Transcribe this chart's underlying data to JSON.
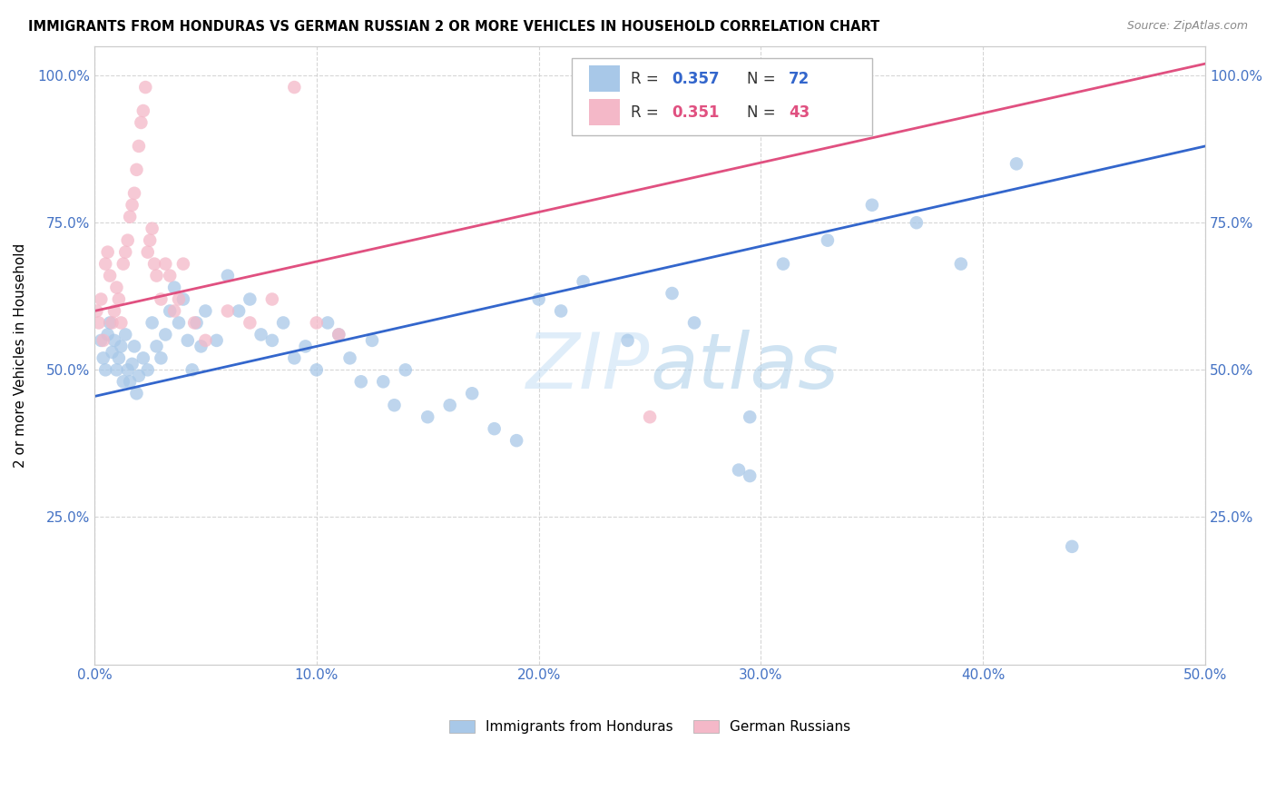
{
  "title": "IMMIGRANTS FROM HONDURAS VS GERMAN RUSSIAN 2 OR MORE VEHICLES IN HOUSEHOLD CORRELATION CHART",
  "source": "Source: ZipAtlas.com",
  "ylabel": "2 or more Vehicles in Household",
  "x_min": 0.0,
  "x_max": 0.5,
  "y_min": 0.0,
  "y_max": 1.05,
  "x_tick_labels": [
    "0.0%",
    "10.0%",
    "20.0%",
    "30.0%",
    "40.0%",
    "50.0%"
  ],
  "x_tick_vals": [
    0.0,
    0.1,
    0.2,
    0.3,
    0.4,
    0.5
  ],
  "y_tick_labels": [
    "25.0%",
    "50.0%",
    "75.0%",
    "100.0%"
  ],
  "y_tick_vals": [
    0.25,
    0.5,
    0.75,
    1.0
  ],
  "legend_label1": "Immigrants from Honduras",
  "legend_label2": "German Russians",
  "blue_color": "#a8c8e8",
  "pink_color": "#f4b8c8",
  "blue_line_color": "#3366cc",
  "pink_line_color": "#e05080",
  "r_n_blue_color": "#3366cc",
  "r_n_pink_color": "#e05080",
  "watermark_color": "#d0e8f8",
  "blue_line_x": [
    0.0,
    0.5
  ],
  "blue_line_y": [
    0.455,
    0.88
  ],
  "pink_line_x": [
    0.0,
    0.5
  ],
  "pink_line_y": [
    0.6,
    1.02
  ],
  "blue_x": [
    0.003,
    0.004,
    0.005,
    0.006,
    0.007,
    0.008,
    0.009,
    0.01,
    0.011,
    0.012,
    0.013,
    0.014,
    0.015,
    0.016,
    0.017,
    0.018,
    0.019,
    0.02,
    0.022,
    0.024,
    0.026,
    0.028,
    0.03,
    0.032,
    0.034,
    0.036,
    0.038,
    0.04,
    0.042,
    0.044,
    0.046,
    0.048,
    0.05,
    0.055,
    0.06,
    0.065,
    0.07,
    0.075,
    0.08,
    0.085,
    0.09,
    0.095,
    0.1,
    0.105,
    0.11,
    0.115,
    0.12,
    0.125,
    0.13,
    0.135,
    0.14,
    0.15,
    0.16,
    0.17,
    0.18,
    0.19,
    0.2,
    0.21,
    0.22,
    0.24,
    0.26,
    0.27,
    0.29,
    0.295,
    0.31,
    0.33,
    0.35,
    0.37,
    0.39,
    0.415,
    0.44,
    0.295
  ],
  "blue_y": [
    0.55,
    0.52,
    0.5,
    0.56,
    0.58,
    0.53,
    0.55,
    0.5,
    0.52,
    0.54,
    0.48,
    0.56,
    0.5,
    0.48,
    0.51,
    0.54,
    0.46,
    0.49,
    0.52,
    0.5,
    0.58,
    0.54,
    0.52,
    0.56,
    0.6,
    0.64,
    0.58,
    0.62,
    0.55,
    0.5,
    0.58,
    0.54,
    0.6,
    0.55,
    0.66,
    0.6,
    0.62,
    0.56,
    0.55,
    0.58,
    0.52,
    0.54,
    0.5,
    0.58,
    0.56,
    0.52,
    0.48,
    0.55,
    0.48,
    0.44,
    0.5,
    0.42,
    0.44,
    0.46,
    0.4,
    0.38,
    0.62,
    0.6,
    0.65,
    0.55,
    0.63,
    0.58,
    0.33,
    0.32,
    0.68,
    0.72,
    0.78,
    0.75,
    0.68,
    0.85,
    0.2,
    0.42
  ],
  "pink_x": [
    0.001,
    0.002,
    0.003,
    0.004,
    0.005,
    0.006,
    0.007,
    0.008,
    0.009,
    0.01,
    0.011,
    0.012,
    0.013,
    0.014,
    0.015,
    0.016,
    0.017,
    0.018,
    0.019,
    0.02,
    0.021,
    0.022,
    0.023,
    0.024,
    0.025,
    0.026,
    0.027,
    0.028,
    0.03,
    0.032,
    0.034,
    0.036,
    0.038,
    0.04,
    0.045,
    0.05,
    0.06,
    0.07,
    0.08,
    0.09,
    0.1,
    0.11,
    0.25
  ],
  "pink_y": [
    0.6,
    0.58,
    0.62,
    0.55,
    0.68,
    0.7,
    0.66,
    0.58,
    0.6,
    0.64,
    0.62,
    0.58,
    0.68,
    0.7,
    0.72,
    0.76,
    0.78,
    0.8,
    0.84,
    0.88,
    0.92,
    0.94,
    0.98,
    0.7,
    0.72,
    0.74,
    0.68,
    0.66,
    0.62,
    0.68,
    0.66,
    0.6,
    0.62,
    0.68,
    0.58,
    0.55,
    0.6,
    0.58,
    0.62,
    0.98,
    0.58,
    0.56,
    0.42
  ]
}
